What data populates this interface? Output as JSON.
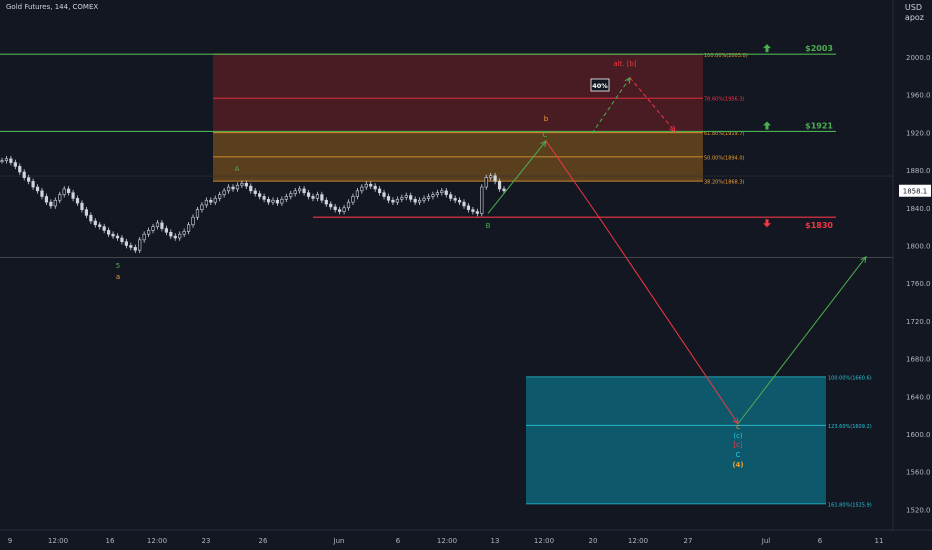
{
  "header": {
    "title": "Gold Futures, 144, COMEX",
    "currency": "USD",
    "scale_mode": "apoz"
  },
  "chart_data": {
    "type": "candlestick",
    "ylim": [
      1505,
      2035
    ],
    "y_ticks": [
      2000.0,
      1960.0,
      1920.0,
      1880.0,
      1840.0,
      1800.0,
      1760.0,
      1720.0,
      1680.0,
      1640.0,
      1600.0,
      1560.0,
      1520.0
    ],
    "x_ticks": [
      "9",
      "12:00",
      "16",
      "12:00",
      "23",
      "26",
      "Jun",
      "6",
      "12:00",
      "13",
      "12:00",
      "20",
      "12:00",
      "27",
      "Jul",
      "6",
      "11"
    ],
    "last_price": "1858.1",
    "price_path": [
      1890,
      1892,
      1888,
      1884,
      1878,
      1872,
      1868,
      1862,
      1858,
      1852,
      1846,
      1842,
      1848,
      1854,
      1860,
      1856,
      1850,
      1845,
      1838,
      1832,
      1826,
      1822,
      1820,
      1816,
      1812,
      1810,
      1808,
      1804,
      1800,
      1798,
      1795,
      1806,
      1812,
      1816,
      1820,
      1824,
      1818,
      1814,
      1810,
      1808,
      1812,
      1815,
      1822,
      1830,
      1838,
      1843,
      1848,
      1846,
      1850,
      1854,
      1858,
      1862,
      1860,
      1864,
      1866,
      1863,
      1858,
      1855,
      1852,
      1849,
      1846,
      1848,
      1845,
      1849,
      1852,
      1855,
      1858,
      1860,
      1856,
      1852,
      1850,
      1854,
      1848,
      1844,
      1841,
      1838,
      1836,
      1840,
      1846,
      1852,
      1858,
      1862,
      1865,
      1863,
      1860,
      1856,
      1852,
      1848,
      1846,
      1849,
      1851,
      1853,
      1849,
      1846,
      1848,
      1850,
      1852,
      1854,
      1856,
      1858,
      1854,
      1850,
      1848,
      1846,
      1842,
      1838,
      1836,
      1834,
      1862,
      1872,
      1874,
      1868,
      1860,
      1858
    ],
    "fib_top": [
      {
        "label": "100.00%(2003.0)",
        "value": 2003.0
      },
      {
        "label": "78.60%(1956.3)",
        "value": 1956.3
      },
      {
        "label": "61.80%(1919.7)",
        "value": 1919.7
      },
      {
        "label": "50.00%(1894.0)",
        "value": 1894.0
      },
      {
        "label": "38.20%(1868.3)",
        "value": 1868.3
      }
    ],
    "fib_bottom": [
      {
        "label": "100.00%(1660.6)",
        "value": 1660.6
      },
      {
        "label": "123.60%(1609.2)",
        "value": 1609.2
      },
      {
        "label": "161.80%(1525.9)",
        "value": 1525.9
      }
    ],
    "levels": [
      {
        "label": "$2003",
        "value": 2003,
        "color": "#4caf50",
        "arrow": "up"
      },
      {
        "label": "$1921",
        "value": 1921,
        "color": "#4caf50",
        "arrow": "up"
      },
      {
        "label": "$1830",
        "value": 1830,
        "color": "#f23645",
        "arrow": "down"
      }
    ],
    "wave_labels": {
      "five": "5",
      "a_lower": "a",
      "A": "A",
      "B": "B",
      "C": "C",
      "b": "b",
      "alt_b": "alt. [b]",
      "pct": "40%",
      "c_lower": "c",
      "c_paren": "(c)",
      "c_bracket": "[c]",
      "C_upper": "C",
      "four": "(4)"
    },
    "colors": {
      "green": "#4caf50",
      "red": "#f23645",
      "orange": "#f0a030",
      "teal": "#26c6da",
      "fib_red_zone": "#5c1f24",
      "fib_orange_zone": "#6b4a1d",
      "fib_teal_zone": "#0e5f73"
    }
  }
}
